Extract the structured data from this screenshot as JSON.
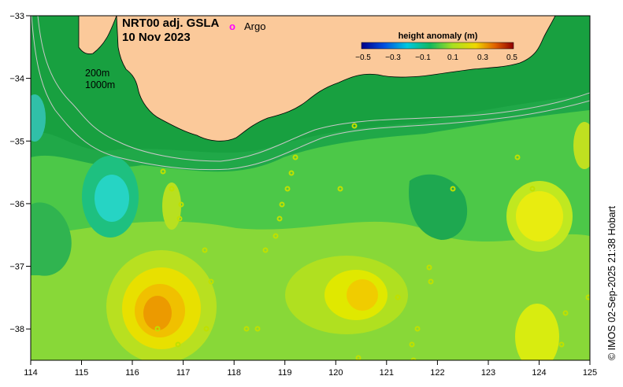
{
  "map": {
    "title_line1": "NRT00 adj. GSLA",
    "title_line2": "10 Nov 2023",
    "legend_marker": "o",
    "legend_label": "Argo",
    "isobath_label_1": "200m",
    "isobath_label_2": "1000m",
    "colorbar_title": "height anomaly (m)",
    "colorbar_ticks": [
      "−0.5",
      "−0.3",
      "−0.1",
      "0.1",
      "0.3",
      "0.5"
    ],
    "x_ticks": [
      "114",
      "115",
      "116",
      "117",
      "118",
      "119",
      "120",
      "121",
      "122",
      "123",
      "124",
      "125"
    ],
    "y_ticks": [
      "−33",
      "−34",
      "−35",
      "−36",
      "−37",
      "−38"
    ],
    "credit": "© IMOS 02-Sep-2025 21:38 Hobart",
    "colors": {
      "land": "#fbc99a",
      "background_anomaly": "#22b050",
      "positive_anomaly": "#e0c000",
      "negative_anomaly": "#22d0c0",
      "argo_marker": "#ff00ff"
    }
  }
}
